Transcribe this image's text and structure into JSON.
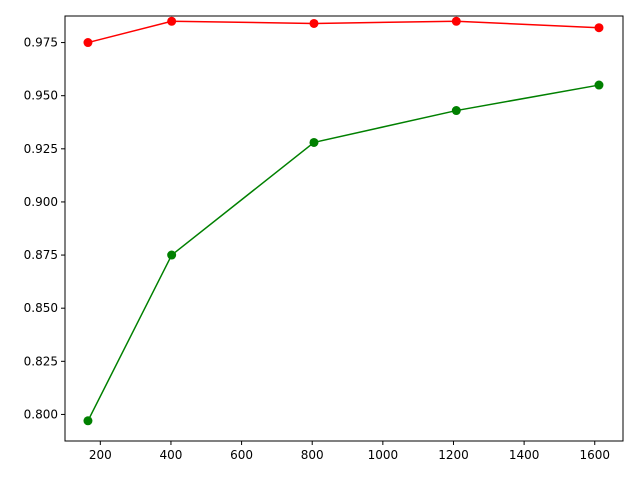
{
  "chart_data": {
    "type": "line",
    "title": "",
    "xlabel": "",
    "ylabel": "",
    "xlim": [
      100,
      1680
    ],
    "ylim": [
      0.7875,
      0.9875
    ],
    "grid": false,
    "legend": "none",
    "x_ticks": [
      200,
      400,
      600,
      800,
      1000,
      1200,
      1400,
      1600
    ],
    "y_ticks": [
      0.8,
      0.825,
      0.85,
      0.875,
      0.9,
      0.925,
      0.95,
      0.975
    ],
    "x": [
      165,
      402,
      805,
      1208,
      1612
    ],
    "series": [
      {
        "color": "#ff0000",
        "marker": "circle",
        "values": [
          0.975,
          0.985,
          0.984,
          0.985,
          0.982
        ]
      },
      {
        "color": "#008000",
        "marker": "circle",
        "values": [
          0.797,
          0.875,
          0.928,
          0.943,
          0.955
        ]
      }
    ]
  }
}
